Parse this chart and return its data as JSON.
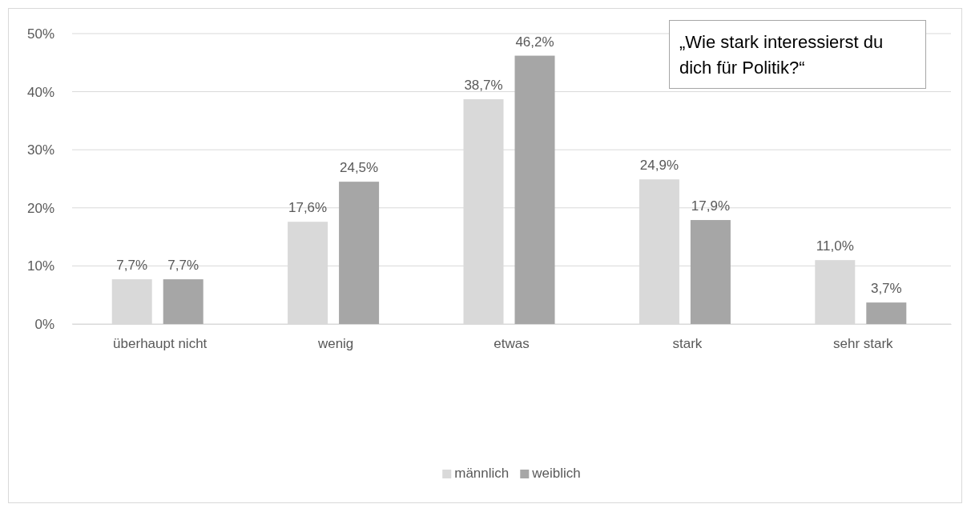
{
  "chart_data": {
    "type": "bar",
    "categories": [
      "überhaupt nicht",
      "wenig",
      "etwas",
      "stark",
      "sehr stark"
    ],
    "series": [
      {
        "name": "männlich",
        "color": "#d9d9d9",
        "values": [
          7.7,
          17.6,
          38.7,
          24.9,
          11.0
        ],
        "value_labels": [
          "7,7%",
          "17,6%",
          "38,7%",
          "24,9%",
          "11,0%"
        ]
      },
      {
        "name": "weiblich",
        "color": "#a6a6a6",
        "values": [
          7.7,
          24.5,
          46.2,
          17.9,
          3.7
        ],
        "value_labels": [
          "7,7%",
          "24,5%",
          "46,2%",
          "17,9%",
          "3,7%"
        ]
      }
    ],
    "ylim": [
      0,
      50
    ],
    "yticks": [
      {
        "value": 0,
        "label": "0%"
      },
      {
        "value": 10,
        "label": "10%"
      },
      {
        "value": 20,
        "label": "20%"
      },
      {
        "value": 30,
        "label": "30%"
      },
      {
        "value": 40,
        "label": "40%"
      },
      {
        "value": 50,
        "label": "50%"
      }
    ],
    "grid": "y",
    "legend": "bottom",
    "annotations": [
      "„Wie stark interessierst du dich für Politik?“"
    ]
  }
}
